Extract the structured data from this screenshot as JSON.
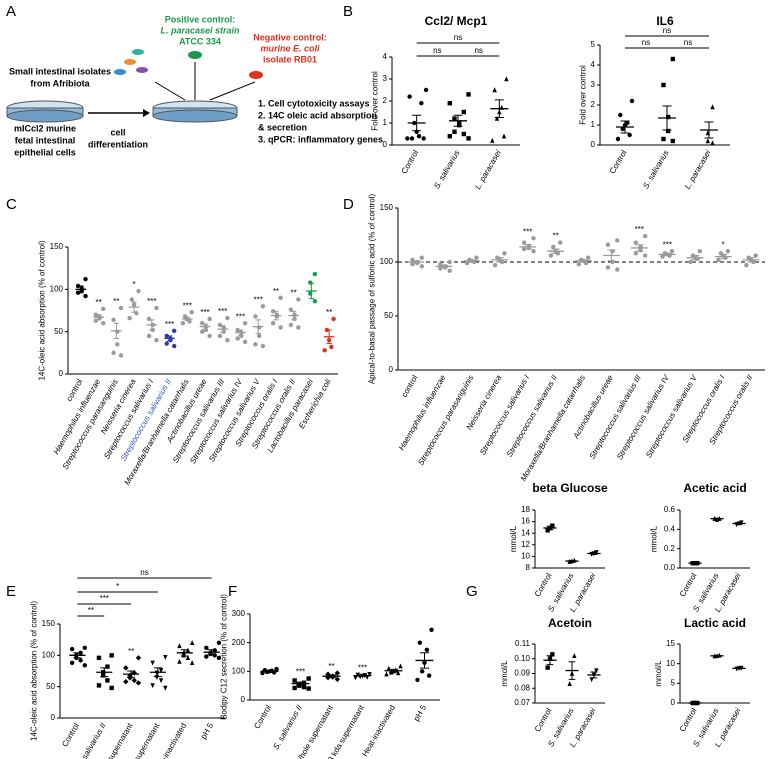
{
  "panel_a": {
    "letter": "A",
    "positive_control": [
      "Positive control:",
      "L. paracasei strain",
      "ATCC 334"
    ],
    "negative_control": [
      "Negative control:",
      "murine E. coli",
      "isolate RB01"
    ],
    "isolates": [
      "Small intestinal isolates",
      "from Afribiota"
    ],
    "cells": [
      "mICcl2 murine",
      "fetal intestinal",
      "epithelial cells"
    ],
    "step": [
      "cell",
      "differentiation"
    ],
    "assays": [
      "1. Cell cytotoxicity assays",
      "2. 14C oleic acid absorption",
      "& secretion",
      "3. qPCR: inflammatory genes"
    ]
  },
  "chart_data": [
    {
      "type": "dot",
      "panel": "B",
      "title": "Ccl2/ Mcp1",
      "ylabel": "Fold over control",
      "categories": [
        "Control",
        "S. salivarius",
        "L. paracasei"
      ],
      "means": [
        1.0,
        1.1,
        1.65
      ],
      "errors": [
        0.35,
        0.25,
        0.4
      ],
      "points": [
        [
          2.5,
          2.2,
          1.9,
          1.0,
          0.6,
          0.4,
          0.3,
          0.3,
          0.3
        ],
        [
          2.3,
          1.9,
          1.5,
          1.2,
          1.0,
          0.9,
          0.6,
          0.5,
          0.4,
          0.3
        ],
        [
          3.0,
          2.5,
          1.7,
          1.5,
          1.2,
          0.4,
          0.2
        ]
      ],
      "colors": [
        "#000000",
        "#000000",
        "#000000"
      ],
      "brackets": [
        "ns",
        "ns",
        "ns"
      ],
      "ylim": [
        0,
        4
      ],
      "yticks": [
        0,
        1,
        2,
        3,
        4
      ]
    },
    {
      "type": "dot",
      "title": "IL6",
      "ylabel": "Fold over control",
      "categories": [
        "Control",
        "S. salivarius",
        "L. paracasei"
      ],
      "means": [
        0.9,
        1.35,
        0.75
      ],
      "errors": [
        0.3,
        0.6,
        0.4
      ],
      "points": [
        [
          2.2,
          1.5,
          1.1,
          1.0,
          0.8,
          0.5,
          0.3
        ],
        [
          4.3,
          3.0,
          1.4,
          0.7,
          0.3,
          0.2
        ],
        [
          1.9,
          0.6,
          0.2,
          0.1
        ]
      ],
      "colors": [
        "#000000",
        "#000000",
        "#000000"
      ],
      "brackets": [
        "ns",
        "ns",
        "ns"
      ],
      "ylim": [
        0,
        5
      ],
      "yticks": [
        0,
        1,
        2,
        3,
        4,
        5
      ]
    },
    {
      "type": "dot",
      "panel": "C",
      "ylabel": "14C-oleic acid absorption (% of control)",
      "categories": [
        "control",
        "Haemophilus influenzae",
        "Streptococcus parasanguinis",
        "Neisseria cinerea",
        "Streptococcus salivarius I",
        "Streptococcus salivarius II",
        "Moraxella/Branhamella catarrhalis",
        "Actinobacillus ureae",
        "Streptococcus salivarius III",
        "Streptococcus salivarius IV",
        "Streptococcus salivarius V",
        "Streptococcus oralis I",
        "Streptococcus oralis II",
        "Lactobacillus paracasei",
        "Escherichia coli"
      ],
      "means": [
        100,
        67,
        51,
        79,
        58,
        42,
        65,
        56,
        53,
        49,
        56,
        69,
        69,
        98,
        44
      ],
      "errors": [
        4,
        3,
        9,
        6,
        6,
        3,
        2,
        3,
        4,
        3,
        8,
        5,
        5,
        9,
        8
      ],
      "points": [
        [
          112,
          104,
          101,
          98,
          96,
          92
        ],
        [
          77,
          70,
          68,
          66,
          63,
          60
        ],
        [
          78,
          64,
          50,
          35,
          25,
          22
        ],
        [
          98,
          88,
          82,
          72,
          66
        ],
        [
          78,
          65,
          58,
          52,
          45,
          40
        ],
        [
          51,
          45,
          42,
          40,
          36,
          33
        ],
        [
          73,
          68,
          65,
          62,
          60
        ],
        [
          65,
          60,
          56,
          52,
          50,
          45
        ],
        [
          66,
          58,
          55,
          50,
          45,
          40
        ],
        [
          60,
          52,
          49,
          45,
          42,
          38
        ],
        [
          80,
          68,
          55,
          45,
          35,
          33
        ],
        [
          90,
          74,
          70,
          68,
          60,
          55
        ],
        [
          88,
          76,
          70,
          65,
          58,
          55
        ],
        [
          118,
          108,
          95,
          86
        ],
        [
          65,
          52,
          40,
          32,
          28
        ]
      ],
      "colors": [
        "#000000",
        "#9a9a9a",
        "#9a9a9a",
        "#9a9a9a",
        "#9a9a9a",
        "#2f3a9e",
        "#9a9a9a",
        "#9a9a9a",
        "#9a9a9a",
        "#9a9a9a",
        "#9a9a9a",
        "#9a9a9a",
        "#9a9a9a",
        "#1a9a4a",
        "#e0301e"
      ],
      "stars": [
        null,
        "**",
        "**",
        "*",
        "***",
        "***",
        "***",
        "***",
        "***",
        "***",
        "***",
        "**",
        "**",
        null,
        "**"
      ],
      "ylim": [
        0,
        150
      ],
      "yticks": [
        0,
        50,
        100,
        150
      ]
    },
    {
      "type": "dot",
      "panel": "D",
      "ylabel": "Apical-to-basal passage of sulfonic acid (% of control)",
      "categories": [
        "control",
        "Haemophilus influenzae",
        "Streptococcus parasanguinis",
        "Neisseria cinerea",
        "Streptococcus salivarius I",
        "Streptococcus salivarius II",
        "Moraxella/Branhamella catarrhalis",
        "Actinobacillus ureae",
        "Streptococcus salivarius III",
        "Streptococcus salivarius IV",
        "Streptococcus salivarius V",
        "Streptococcus oralis I",
        "Streptococcus oralis II"
      ],
      "means": [
        100,
        96,
        101,
        102,
        114,
        110,
        101,
        106,
        113,
        107,
        104,
        105,
        102
      ],
      "errors": [
        1,
        1,
        1,
        2,
        2,
        2,
        1,
        5,
        3,
        1,
        2,
        2,
        2
      ],
      "points": [
        [
          104,
          102,
          100,
          99,
          98,
          96
        ],
        [
          100,
          98,
          96,
          95,
          94,
          92
        ],
        [
          104,
          102,
          101,
          100,
          99
        ],
        [
          108,
          104,
          102,
          100,
          97
        ],
        [
          122,
          118,
          115,
          113,
          112,
          110
        ],
        [
          118,
          114,
          110,
          108,
          106
        ],
        [
          104,
          102,
          101,
          99,
          98
        ],
        [
          120,
          116,
          110,
          100,
          95,
          93
        ],
        [
          124,
          118,
          114,
          111,
          108,
          106
        ],
        [
          110,
          108,
          107,
          106,
          105
        ],
        [
          110,
          106,
          104,
          103,
          100
        ],
        [
          110,
          108,
          106,
          104,
          102
        ],
        [
          106,
          104,
          102,
          100,
          97
        ]
      ],
      "colors": [
        "#9a9a9a",
        "#9a9a9a",
        "#9a9a9a",
        "#9a9a9a",
        "#9a9a9a",
        "#9a9a9a",
        "#9a9a9a",
        "#9a9a9a",
        "#9a9a9a",
        "#9a9a9a",
        "#9a9a9a",
        "#9a9a9a",
        "#9a9a9a"
      ],
      "stars": [
        null,
        null,
        null,
        null,
        "***",
        "**",
        null,
        null,
        "***",
        "***",
        null,
        "*",
        null
      ],
      "reference_line": 100,
      "ylim": [
        0,
        150
      ],
      "yticks": [
        0,
        50,
        100,
        150
      ]
    },
    {
      "type": "dot",
      "panel": "E",
      "ylabel": "14C-oleic acid absorption (% of control)",
      "categories": [
        "Control",
        "S. salivarius II",
        "Whole supernatant",
        "< 3 kda supernatant",
        "Heat-inactivated",
        "pH 5"
      ],
      "means": [
        100,
        73,
        70,
        73,
        104,
        105
      ],
      "errors": [
        4,
        7,
        5,
        7,
        5,
        4
      ],
      "points": [
        [
          112,
          110,
          104,
          100,
          96,
          92,
          88,
          84
        ],
        [
          100,
          96,
          82,
          73,
          68,
          60,
          52,
          48
        ],
        [
          96,
          80,
          72,
          68,
          64,
          60,
          58,
          56
        ],
        [
          97,
          88,
          76,
          72,
          65,
          60,
          52,
          48
        ],
        [
          120,
          115,
          108,
          104,
          100,
          96,
          90,
          88
        ],
        [
          120,
          112,
          108,
          104,
          102,
          100,
          98,
          96
        ]
      ],
      "colors": [
        "#000000",
        "#000000",
        "#000000",
        "#000000",
        "#000000",
        "#000000"
      ],
      "stars": [
        null,
        null,
        "**",
        null,
        null,
        null
      ],
      "brackets": [
        "ns",
        "*",
        "***",
        "**"
      ],
      "ylim": [
        0,
        150
      ],
      "yticks": [
        0,
        50,
        100,
        150
      ]
    },
    {
      "type": "dot",
      "panel": "F",
      "ylabel": "Bodipy C12 secretion (% of control)",
      "categories": [
        "Control",
        "S. salivarius II",
        "Whole supernatant",
        "< 3 kda supernatant",
        "Heat-inactivated",
        "pH 5"
      ],
      "means": [
        100,
        57,
        83,
        85,
        102,
        138
      ],
      "errors": [
        2,
        5,
        4,
        2,
        5,
        27
      ],
      "points": [
        [
          108,
          104,
          102,
          100,
          98,
          96,
          94
        ],
        [
          75,
          68,
          60,
          56,
          50,
          45,
          42,
          40
        ],
        [
          94,
          90,
          84,
          80,
          78,
          72
        ],
        [
          90,
          88,
          86,
          84,
          82,
          80,
          78
        ],
        [
          118,
          110,
          104,
          100,
          96,
          94,
          90
        ],
        [
          245,
          200,
          175,
          130,
          100,
          85,
          70
        ]
      ],
      "colors": [
        "#000000",
        "#000000",
        "#000000",
        "#000000",
        "#000000",
        "#000000"
      ],
      "stars": [
        null,
        "***",
        "**",
        "***",
        null,
        null
      ],
      "ylim": [
        0,
        300
      ],
      "yticks": [
        0,
        100,
        200,
        300
      ]
    },
    {
      "type": "dot",
      "panel": "G",
      "title": "beta Glucose",
      "ylabel": "mmol/L",
      "categories": [
        "Control",
        "S. salivarius",
        "L. paracasei"
      ],
      "means": [
        14.9,
        9.2,
        10.5
      ],
      "errors": [
        0.3,
        0.1,
        0.15
      ],
      "points": [
        [
          15.3,
          14.9,
          14.5
        ],
        [
          9.3,
          9.2,
          9.1
        ],
        [
          10.7,
          10.5,
          10.4
        ]
      ],
      "colors": [
        "#000000",
        "#000000",
        "#000000"
      ],
      "ylim": [
        8,
        18
      ],
      "yticks": [
        8,
        10,
        12,
        14,
        16,
        18
      ]
    },
    {
      "type": "dot",
      "title": "Acetic acid",
      "ylabel": "mmol/L",
      "categories": [
        "Control",
        "S. salivarius",
        "L. paracasei"
      ],
      "means": [
        0.05,
        0.51,
        0.46
      ],
      "errors": [
        0.003,
        0.005,
        0.01
      ],
      "points": [
        [
          0.05,
          0.05,
          0.05
        ],
        [
          0.51,
          0.5,
          0.51
        ],
        [
          0.47,
          0.46,
          0.45
        ]
      ],
      "colors": [
        "#000000",
        "#000000",
        "#000000"
      ],
      "ylim": [
        0,
        0.6
      ],
      "yticks": [
        {
          "value": 0,
          "label": "0.0"
        },
        0.2,
        0.4,
        0.6
      ]
    },
    {
      "type": "dot",
      "title": "Acetoin",
      "ylabel": "mmol/L",
      "categories": [
        "Control",
        "S. salivarius",
        "L. paracasei"
      ],
      "means": [
        0.099,
        0.092,
        0.089
      ],
      "errors": [
        0.003,
        0.006,
        0.002
      ],
      "points": [
        [
          0.103,
          0.1,
          0.094
        ],
        [
          0.102,
          0.09,
          0.083
        ],
        [
          0.092,
          0.089,
          0.086
        ]
      ],
      "colors": [
        "#000000",
        "#000000",
        "#000000"
      ],
      "ylim": [
        0.07,
        0.11
      ],
      "yticks": [
        0.07,
        0.08,
        0.09,
        {
          "value": 0.1,
          "label": "0.10"
        },
        0.11
      ]
    },
    {
      "type": "dot",
      "title": "Lactic acid",
      "ylabel": "mmol/L",
      "categories": [
        "Control",
        "S. salivarius",
        "L. paracasei"
      ],
      "means": [
        0,
        12,
        8.8
      ],
      "errors": [
        0,
        0.1,
        0.1
      ],
      "points": [
        [
          0,
          0,
          0
        ],
        [
          12.1,
          12,
          11.9
        ],
        [
          8.9,
          8.8,
          8.7
        ]
      ],
      "colors": [
        "#000000",
        "#000000",
        "#000000"
      ],
      "ylim": [
        0,
        15
      ],
      "yticks": [
        0,
        5,
        10,
        15
      ]
    }
  ]
}
